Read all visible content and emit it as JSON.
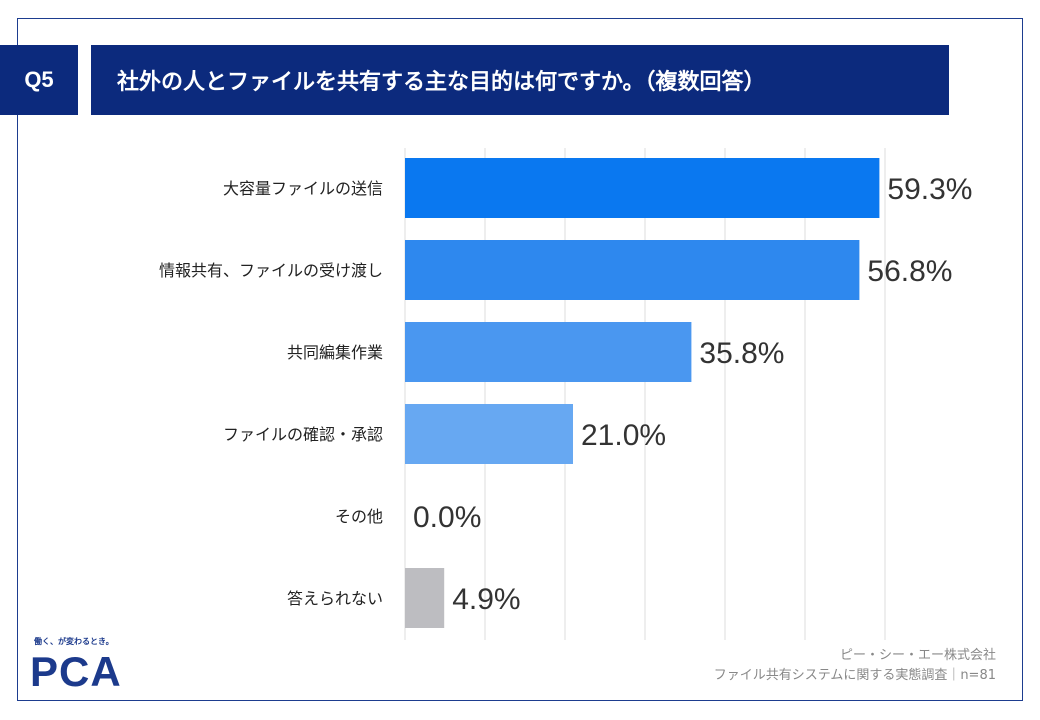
{
  "header": {
    "question_no": "Q5",
    "title": "社外の人とファイルを共有する主な目的は何ですか。（複数回答）"
  },
  "chart_data": {
    "type": "bar",
    "orientation": "horizontal",
    "title": "社外の人とファイルを共有する主な目的は何ですか。（複数回答）",
    "categories": [
      "大容量ファイルの送信",
      "情報共有、ファイルの受け渡し",
      "共同編集作業",
      "ファイルの確認・承認",
      "その他",
      "答えられない"
    ],
    "values": [
      59.3,
      56.8,
      35.8,
      21.0,
      0.0,
      4.9
    ],
    "value_labels": [
      "59.3%",
      "56.8%",
      "35.8%",
      "21.0%",
      "0.0%",
      "4.9%"
    ],
    "unit": "%",
    "xlim": [
      0,
      65
    ],
    "grid": true,
    "colors": [
      "#0a78f0",
      "#2e88ee",
      "#4a97f0",
      "#67a8f2",
      "#8bbcf5",
      "#bdbdc1"
    ]
  },
  "footer": {
    "tagline": "働く、が変わるとき。",
    "logo": "PCA",
    "company": "ピー・シー・エー株式会社",
    "survey": "ファイル共有システムに関する実態調査｜n=81"
  }
}
